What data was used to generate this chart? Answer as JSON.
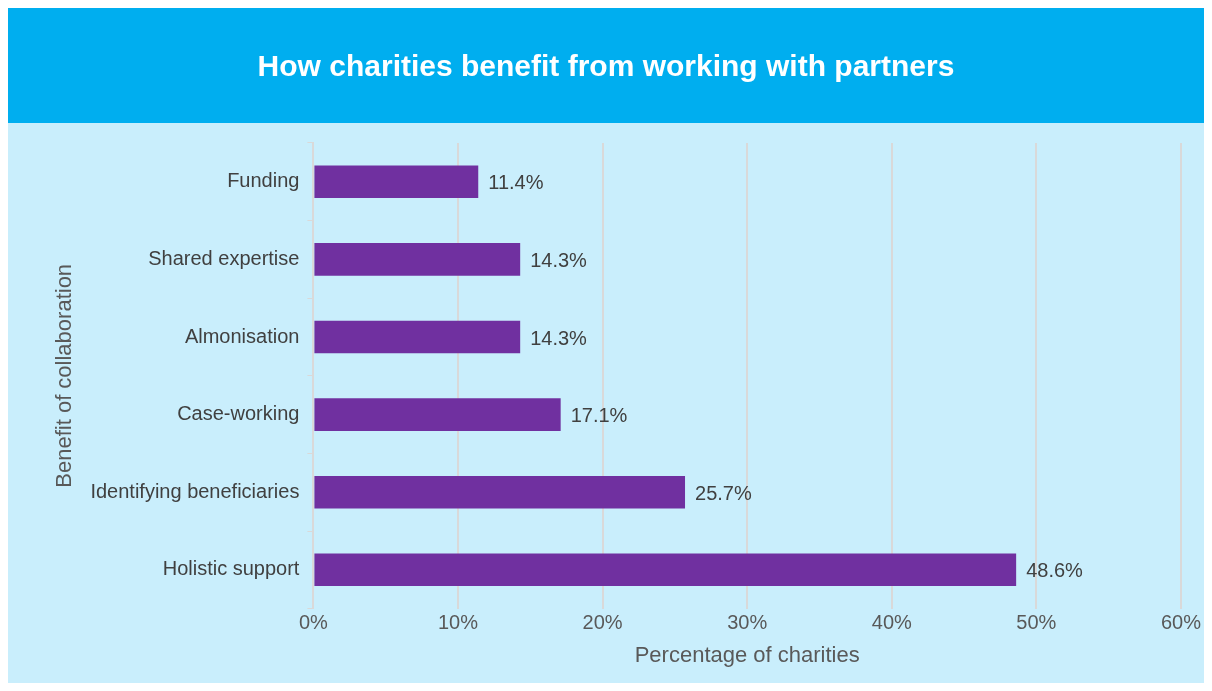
{
  "chart_data": {
    "type": "bar",
    "orientation": "horizontal",
    "title": "How charities benefit from working with partners",
    "xlabel": "Percentage of charities",
    "ylabel": "Benefit of collaboration",
    "categories": [
      "Funding",
      "Shared expertise",
      "Almonisation",
      "Case-working",
      "Identifying beneficiaries",
      "Holistic support"
    ],
    "values": [
      11.4,
      14.3,
      14.3,
      17.1,
      25.7,
      48.6
    ],
    "value_labels": [
      "11.4%",
      "14.3%",
      "14.3%",
      "17.1%",
      "25.7%",
      "48.6%"
    ],
    "color": "#7030a0",
    "xlim": [
      0,
      60
    ],
    "xticks": [
      {
        "value": 0,
        "label": "0%"
      },
      {
        "value": 10,
        "label": "10%"
      },
      {
        "value": 20,
        "label": "20%"
      },
      {
        "value": 30,
        "label": "30%"
      },
      {
        "value": 40,
        "label": "40%"
      },
      {
        "value": 50,
        "label": "50%"
      },
      {
        "value": 60,
        "label": "60%"
      }
    ],
    "grid": "x",
    "legend": false
  }
}
